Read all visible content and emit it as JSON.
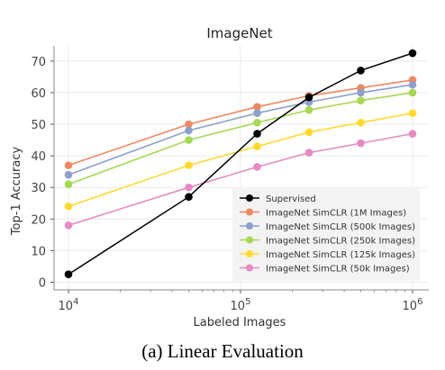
{
  "chart_data": {
    "type": "line",
    "title": "ImageNet",
    "xlabel": "Labeled Images",
    "ylabel": "Top-1 Accuracy",
    "xscale": "log",
    "xlim": [
      10000,
      1000000
    ],
    "ylim": [
      0,
      72
    ],
    "x": [
      10000,
      50000,
      125000,
      250000,
      500000,
      1000000
    ],
    "x_ticks": [
      {
        "value": 10000,
        "base": "10",
        "exp": "4"
      },
      {
        "value": 100000,
        "base": "10",
        "exp": "5"
      },
      {
        "value": 1000000,
        "base": "10",
        "exp": "6"
      }
    ],
    "y_ticks": [
      0,
      10,
      20,
      30,
      40,
      50,
      60,
      70
    ],
    "grid": true,
    "legend_position": "bottom-right",
    "series": [
      {
        "name": "Supervised",
        "color": "#000000",
        "values": [
          2.5,
          27,
          47,
          58.5,
          67,
          72.5
        ]
      },
      {
        "name": "ImageNet SimCLR (1M Images)",
        "color": "#f0875f",
        "values": [
          37,
          50,
          55.5,
          59,
          61.5,
          64
        ]
      },
      {
        "name": "ImageNet SimCLR (500k Images)",
        "color": "#8da0cb",
        "values": [
          34,
          48,
          53.5,
          57,
          60,
          62.5
        ]
      },
      {
        "name": "ImageNet SimCLR (250k Images)",
        "color": "#a6d854",
        "values": [
          31,
          45,
          50.5,
          54.5,
          57.5,
          60
        ]
      },
      {
        "name": "ImageNet SimCLR (125k Images)",
        "color": "#ffd92f",
        "values": [
          24,
          37,
          43,
          47.5,
          50.5,
          53.5
        ]
      },
      {
        "name": "ImageNet SimCLR (50k Images)",
        "color": "#e78ac3",
        "values": [
          18,
          30,
          36.5,
          41,
          44,
          47
        ]
      }
    ]
  },
  "caption": "(a) Linear Evaluation"
}
